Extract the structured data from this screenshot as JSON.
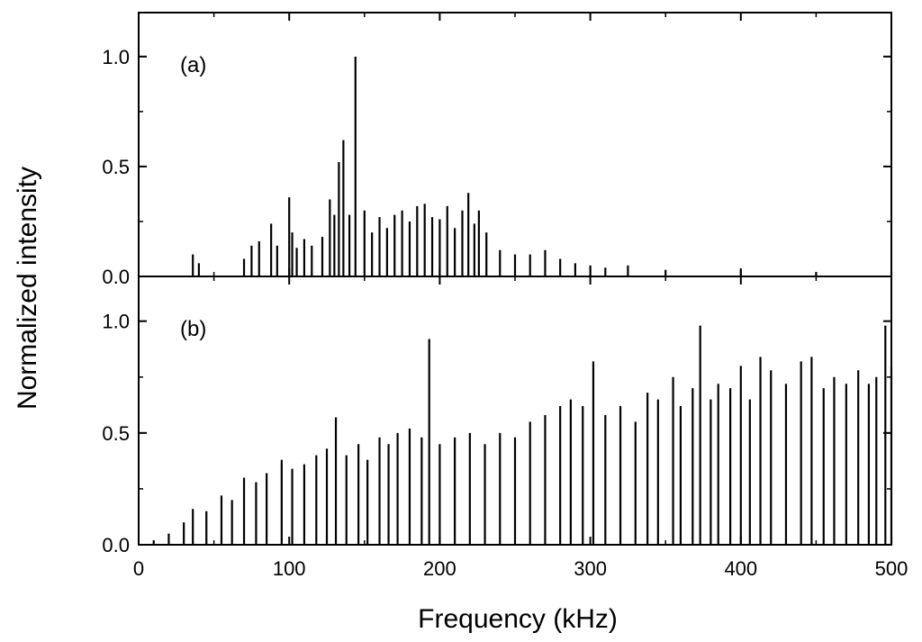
{
  "figure": {
    "xlabel": "Frequency (kHz)",
    "ylabel": "Normalized intensity"
  },
  "chart_data": [
    {
      "type": "bar",
      "panel_label": "(a)",
      "xlabel": "Frequency (kHz)",
      "ylabel": "Normalized intensity",
      "xlim": [
        0,
        500
      ],
      "ylim": [
        0,
        1.2
      ],
      "xticks": [
        "0",
        "100",
        "200",
        "300",
        "400",
        "500"
      ],
      "yticks": [
        "0.0",
        "0.5",
        "1.0"
      ],
      "grid": false,
      "series": [
        {
          "x": [
            36,
            40,
            70,
            75,
            80,
            88,
            92,
            100,
            102,
            105,
            110,
            115,
            122,
            127,
            130,
            133,
            136,
            140,
            144,
            150,
            155,
            160,
            165,
            170,
            175,
            180,
            185,
            190,
            195,
            200,
            205,
            210,
            215,
            219,
            223,
            226,
            231,
            240,
            250,
            260,
            270,
            280,
            290,
            300,
            310,
            325,
            350,
            400,
            450,
            500
          ],
          "values": [
            0.1,
            0.06,
            0.08,
            0.14,
            0.16,
            0.24,
            0.14,
            0.36,
            0.2,
            0.13,
            0.17,
            0.14,
            0.18,
            0.35,
            0.28,
            0.52,
            0.62,
            0.28,
            1.0,
            0.3,
            0.2,
            0.27,
            0.22,
            0.28,
            0.3,
            0.25,
            0.32,
            0.33,
            0.27,
            0.26,
            0.32,
            0.22,
            0.3,
            0.38,
            0.24,
            0.3,
            0.2,
            0.12,
            0.1,
            0.1,
            0.12,
            0.08,
            0.06,
            0.05,
            0.04,
            0.05,
            0.03,
            0.03,
            0.02,
            0.02
          ]
        }
      ]
    },
    {
      "type": "bar",
      "panel_label": "(b)",
      "xlabel": "Frequency (kHz)",
      "ylabel": "Normalized intensity",
      "xlim": [
        0,
        500
      ],
      "ylim": [
        0,
        1.2
      ],
      "xticks": [
        "0",
        "100",
        "200",
        "300",
        "400",
        "500"
      ],
      "yticks": [
        "0.0",
        "0.5",
        "1.0"
      ],
      "grid": false,
      "series": [
        {
          "x": [
            10,
            20,
            30,
            36,
            45,
            55,
            62,
            70,
            78,
            85,
            95,
            102,
            110,
            118,
            125,
            131,
            138,
            146,
            152,
            160,
            166,
            172,
            180,
            188,
            193,
            200,
            210,
            220,
            230,
            240,
            250,
            260,
            270,
            280,
            287,
            295,
            302,
            310,
            320,
            330,
            338,
            345,
            355,
            360,
            368,
            373,
            380,
            385,
            393,
            400,
            406,
            413,
            420,
            430,
            440,
            447,
            455,
            462,
            470,
            478,
            485,
            490,
            496,
            500
          ],
          "values": [
            0.02,
            0.05,
            0.1,
            0.16,
            0.15,
            0.22,
            0.2,
            0.3,
            0.28,
            0.32,
            0.38,
            0.34,
            0.36,
            0.4,
            0.43,
            0.57,
            0.4,
            0.45,
            0.38,
            0.48,
            0.45,
            0.5,
            0.52,
            0.48,
            0.92,
            0.45,
            0.48,
            0.5,
            0.45,
            0.5,
            0.48,
            0.55,
            0.58,
            0.62,
            0.65,
            0.62,
            0.82,
            0.58,
            0.62,
            0.55,
            0.68,
            0.65,
            0.75,
            0.62,
            0.7,
            0.98,
            0.65,
            0.72,
            0.7,
            0.8,
            0.65,
            0.84,
            0.78,
            0.72,
            0.82,
            0.84,
            0.7,
            0.75,
            0.72,
            0.78,
            0.72,
            0.75,
            0.98,
            0.8
          ]
        }
      ]
    }
  ]
}
